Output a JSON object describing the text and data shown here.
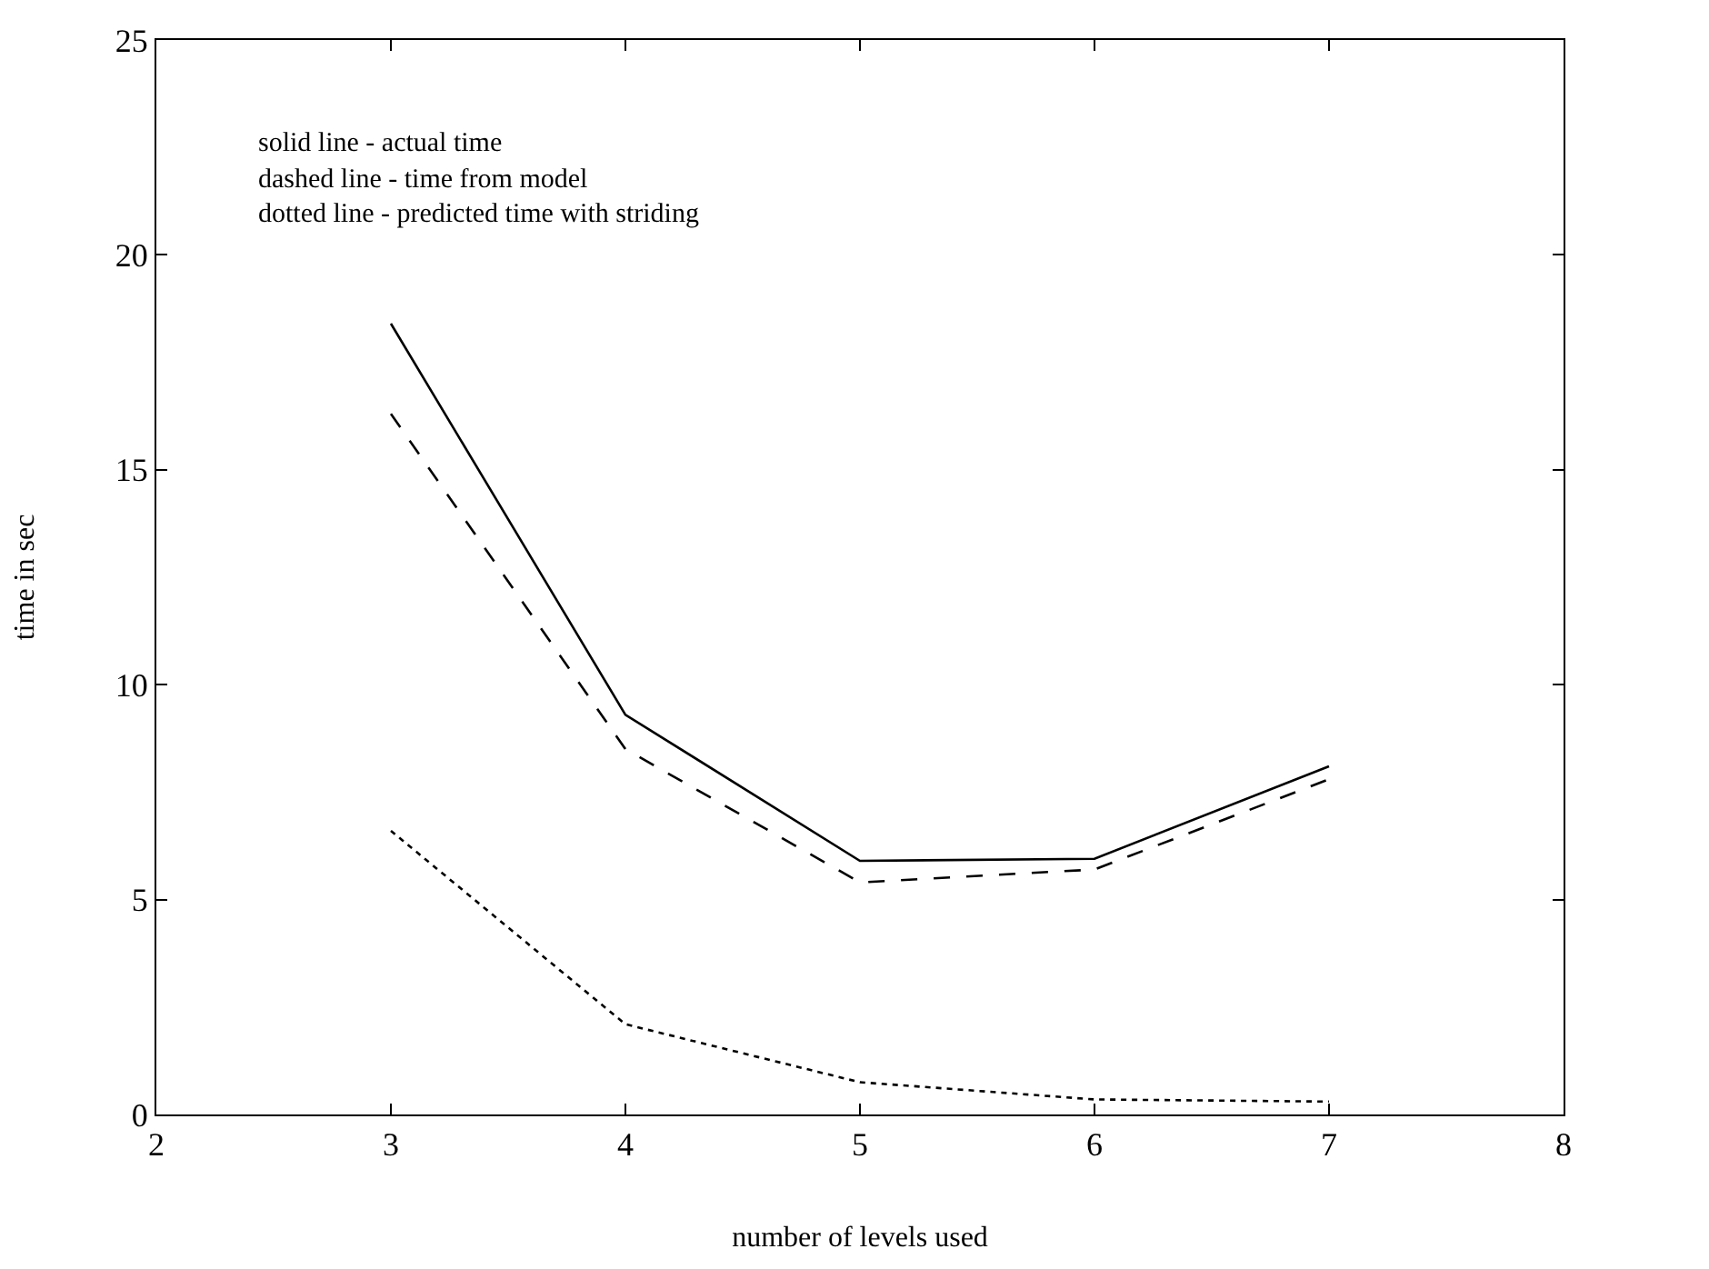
{
  "chart_data": {
    "type": "line",
    "xlabel": "number of levels used",
    "ylabel": "time in sec",
    "x": [
      3,
      4,
      5,
      6,
      7
    ],
    "series": [
      {
        "color": "#000000",
        "line_style": "solid",
        "values": [
          18.4,
          9.3,
          5.9,
          5.95,
          8.1
        ]
      },
      {
        "color": "#000000",
        "line_style": "dashed",
        "values": [
          16.3,
          8.5,
          5.4,
          5.7,
          7.8
        ]
      },
      {
        "color": "#000000",
        "line_style": "dotted",
        "values": [
          6.6,
          2.1,
          0.75,
          0.35,
          0.3
        ]
      }
    ],
    "annotations": [
      "solid line - actual time",
      "dashed line - time from model",
      "dotted line - predicted time with striding"
    ],
    "xlim": [
      2,
      8
    ],
    "xticks": [
      2,
      3,
      4,
      5,
      6,
      7,
      8
    ],
    "ylim": [
      0,
      25
    ],
    "yticks": [
      0,
      5,
      10,
      15,
      20,
      25
    ],
    "grid": false,
    "legend": false,
    "marker": "none"
  }
}
